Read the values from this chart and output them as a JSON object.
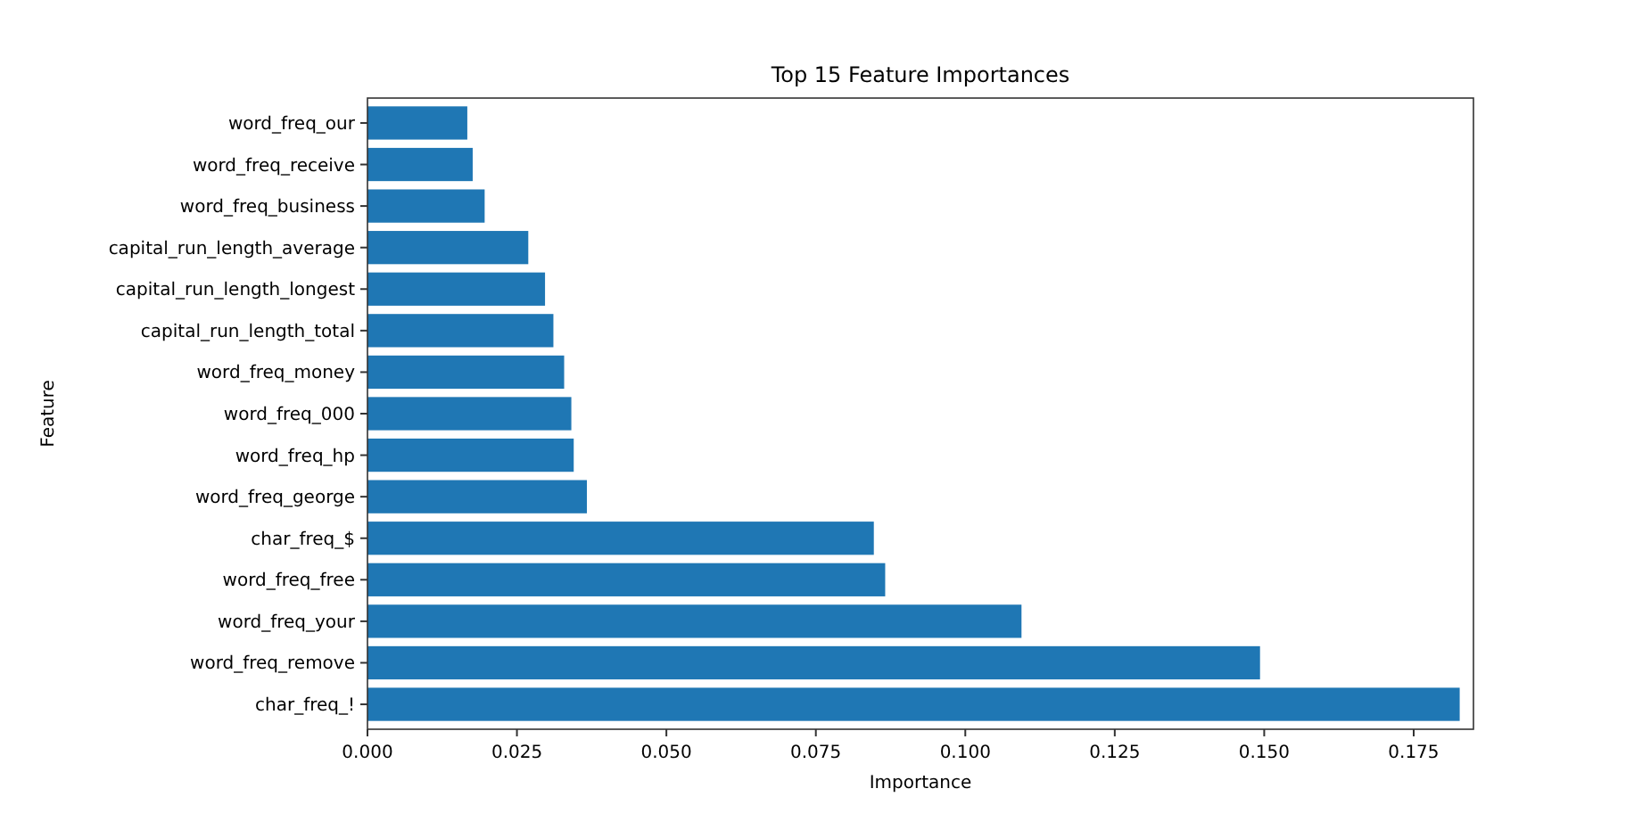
{
  "chart_data": {
    "type": "bar",
    "orientation": "horizontal",
    "title": "Top 15 Feature Importances",
    "xlabel": "Importance",
    "ylabel": "Feature",
    "categories": [
      "word_freq_our",
      "word_freq_receive",
      "word_freq_business",
      "capital_run_length_average",
      "capital_run_length_longest",
      "capital_run_length_total",
      "word_freq_money",
      "word_freq_000",
      "word_freq_hp",
      "word_freq_george",
      "char_freq_$",
      "word_freq_free",
      "word_freq_your",
      "word_freq_remove",
      "char_freq_!"
    ],
    "values": [
      0.0167,
      0.0176,
      0.0196,
      0.0269,
      0.0297,
      0.0311,
      0.0329,
      0.0341,
      0.0345,
      0.0367,
      0.0847,
      0.0866,
      0.1094,
      0.1493,
      0.1827
    ],
    "color": "#1f77b4",
    "xlim": [
      0,
      0.185
    ],
    "xticks": [
      {
        "value": 0,
        "label": "0.000"
      },
      {
        "value": 0.025,
        "label": "0.025"
      },
      {
        "value": 0.05,
        "label": "0.050"
      },
      {
        "value": 0.075,
        "label": "0.075"
      },
      {
        "value": 0.1,
        "label": "0.100"
      },
      {
        "value": 0.125,
        "label": "0.125"
      },
      {
        "value": 0.15,
        "label": "0.150"
      },
      {
        "value": 0.175,
        "label": "0.175"
      }
    ],
    "grid": false
  }
}
